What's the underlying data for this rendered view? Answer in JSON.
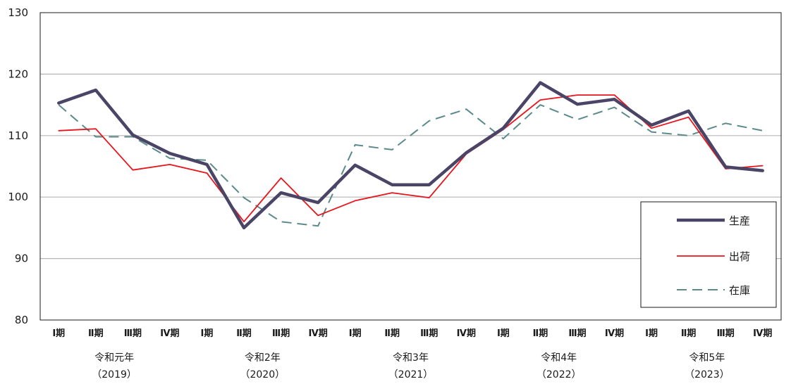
{
  "chart_data": {
    "type": "line",
    "categories": [
      "Ⅰ期",
      "Ⅱ期",
      "Ⅲ期",
      "Ⅳ期",
      "Ⅰ期",
      "Ⅱ期",
      "Ⅲ期",
      "Ⅳ期",
      "Ⅰ期",
      "Ⅱ期",
      "Ⅲ期",
      "Ⅳ期",
      "Ⅰ期",
      "Ⅱ期",
      "Ⅲ期",
      "Ⅳ期",
      "Ⅰ期",
      "Ⅱ期",
      "Ⅲ期",
      "Ⅳ期"
    ],
    "year_groups": [
      {
        "label": "令和元年",
        "year": "（2019）"
      },
      {
        "label": "令和2年",
        "year": "（2020）"
      },
      {
        "label": "令和3年",
        "year": "（2021）"
      },
      {
        "label": "令和4年",
        "year": "（2022）"
      },
      {
        "label": "令和5年",
        "year": "（2023）"
      }
    ],
    "ylim": [
      80,
      130
    ],
    "yticks": [
      80,
      90,
      100,
      110,
      120,
      130
    ],
    "grid": true,
    "legend_position": "right",
    "series": [
      {
        "name": "生産",
        "color": "#4a4466",
        "style": "thick",
        "values": [
          115.3,
          117.4,
          110.1,
          107.1,
          105.3,
          95.0,
          100.7,
          99.1,
          105.2,
          102.0,
          102.0,
          107.2,
          111.2,
          118.6,
          115.1,
          115.9,
          111.7,
          114.0,
          104.9,
          104.3
        ]
      },
      {
        "name": "出荷",
        "color": "#e8141c",
        "style": "solid",
        "values": [
          110.8,
          111.1,
          104.4,
          105.3,
          103.9,
          96.0,
          103.1,
          97.0,
          99.4,
          100.7,
          99.9,
          107.0,
          111.0,
          115.8,
          116.6,
          116.6,
          111.2,
          113.0,
          104.6,
          105.1
        ]
      },
      {
        "name": "在庫",
        "color": "#5b8a8a",
        "style": "dashed",
        "values": [
          115.0,
          109.8,
          109.8,
          106.3,
          106.0,
          99.9,
          96.0,
          95.3,
          108.5,
          107.7,
          112.4,
          114.3,
          109.5,
          115.0,
          112.6,
          114.6,
          110.6,
          110.0,
          112.0,
          110.8
        ]
      }
    ]
  }
}
